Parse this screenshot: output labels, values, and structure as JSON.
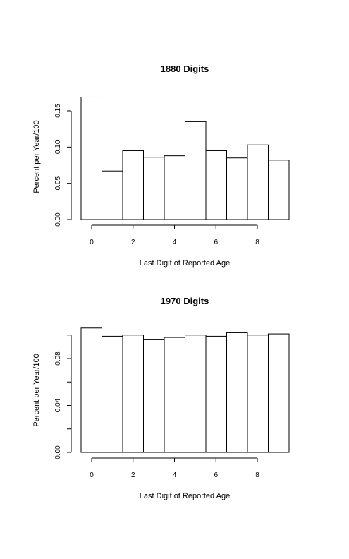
{
  "chart_data": [
    {
      "type": "bar",
      "title": "1880 Digits",
      "xlabel": "Last Digit of Reported Age",
      "ylabel": "Percent per Year/100",
      "categories": [
        "0",
        "1",
        "2",
        "3",
        "4",
        "5",
        "6",
        "7",
        "8",
        "9"
      ],
      "values": [
        0.169,
        0.067,
        0.095,
        0.086,
        0.088,
        0.135,
        0.095,
        0.085,
        0.103,
        0.082
      ],
      "ylim": [
        0,
        0.17
      ],
      "x_ticks": [
        "0",
        "2",
        "4",
        "6",
        "8"
      ],
      "y_ticks": [
        "0.00",
        "0.05",
        "0.10",
        "0.15"
      ],
      "grid": false,
      "legend": "none"
    },
    {
      "type": "bar",
      "title": "1970 Digits",
      "xlabel": "Last Digit of Reported Age",
      "ylabel": "Percent per Year/100",
      "categories": [
        "0",
        "1",
        "2",
        "3",
        "4",
        "5",
        "6",
        "7",
        "8",
        "9"
      ],
      "values": [
        0.106,
        0.099,
        0.1,
        0.096,
        0.098,
        0.1,
        0.099,
        0.102,
        0.1,
        0.101
      ],
      "ylim": [
        0,
        0.1
      ],
      "x_ticks": [
        "0",
        "2",
        "4",
        "6",
        "8"
      ],
      "y_ticks": [
        "0.00",
        "0.04",
        "0.08"
      ],
      "grid": false,
      "legend": "none"
    }
  ]
}
